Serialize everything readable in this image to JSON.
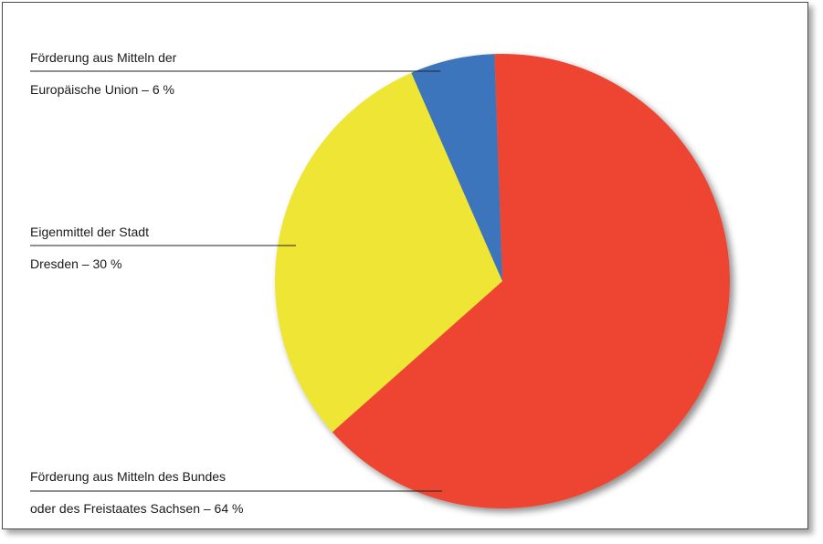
{
  "chart_data": {
    "type": "pie",
    "slices": [
      {
        "label_line1": "Förderung aus Mitteln des Bundes",
        "label_line2": "oder des Freistaates Sachsen – 64 %",
        "value": 64,
        "color": "#ee4530"
      },
      {
        "label_line1": "Eigenmittel der Stadt",
        "label_line2": "Dresden – 30 %",
        "value": 30,
        "color": "#efe534"
      },
      {
        "label_line1": "Förderung aus Mitteln der",
        "label_line2": "Europäische Union – 6 %",
        "value": 6,
        "color": "#3d74bc"
      }
    ],
    "start_angle_deg": -2
  }
}
